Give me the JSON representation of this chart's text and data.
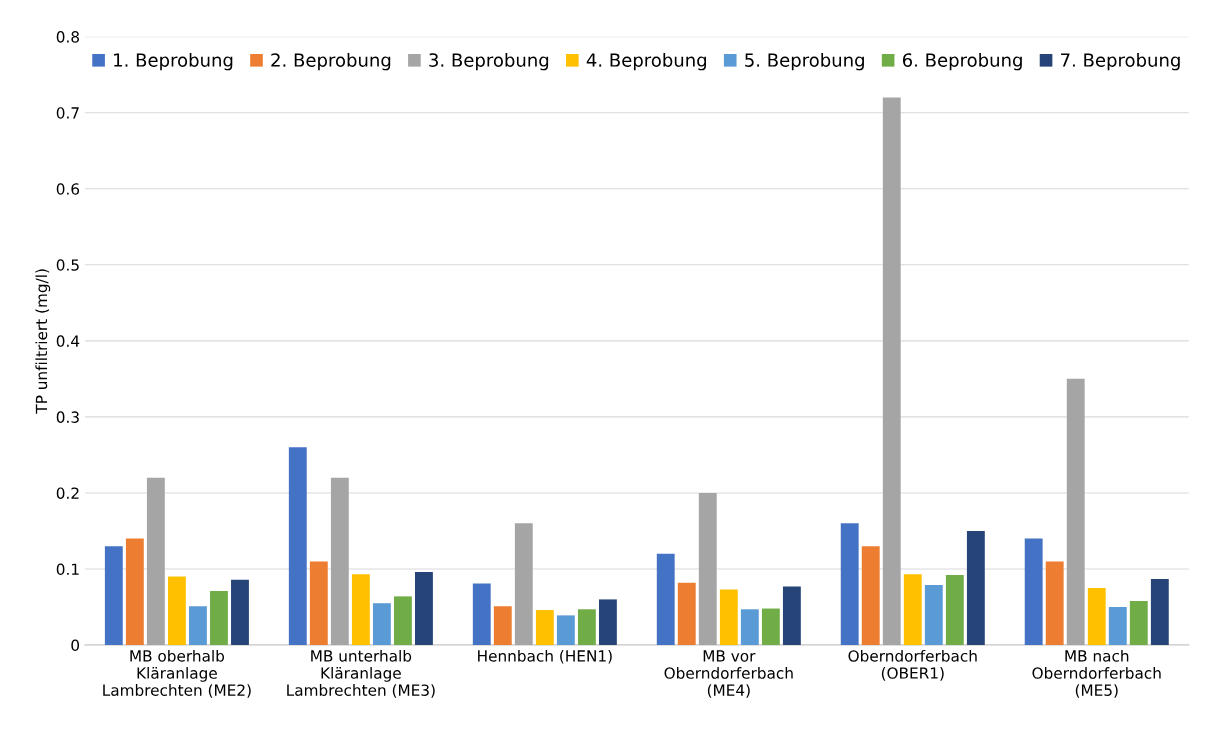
{
  "chart_data": {
    "type": "bar",
    "ylabel": "TP unfiltriert (mg/l)",
    "categories": [
      "MB oberhalb\nKläranlage\nLambrechten (ME2)",
      "MB unterhalb\nKläranlage\nLambrechten (ME3)",
      "Hennbach (HEN1)",
      "MB vor\nOberndorferbach\n(ME4)",
      "Oberndorferbach\n(OBER1)",
      "MB nach\nOberndorferbach\n(ME5)"
    ],
    "series": [
      {
        "name": "1. Beprobung",
        "color": "#4472c4",
        "values": [
          0.13,
          0.26,
          0.081,
          0.12,
          0.16,
          0.14
        ]
      },
      {
        "name": "2. Beprobung",
        "color": "#ed7d31",
        "values": [
          0.14,
          0.11,
          0.051,
          0.082,
          0.13,
          0.11
        ]
      },
      {
        "name": "3. Beprobung",
        "color": "#a5a5a5",
        "values": [
          0.22,
          0.22,
          0.16,
          0.2,
          0.72,
          0.35
        ]
      },
      {
        "name": "4. Beprobung",
        "color": "#ffc000",
        "values": [
          0.09,
          0.093,
          0.046,
          0.073,
          0.093,
          0.075
        ]
      },
      {
        "name": "5. Beprobung",
        "color": "#5b9bd5",
        "values": [
          0.051,
          0.055,
          0.039,
          0.047,
          0.079,
          0.05
        ]
      },
      {
        "name": "6. Beprobung",
        "color": "#70ad47",
        "values": [
          0.071,
          0.064,
          0.047,
          0.048,
          0.092,
          0.058
        ]
      },
      {
        "name": "7. Beprobung",
        "color": "#264478",
        "values": [
          0.086,
          0.096,
          0.06,
          0.077,
          0.15,
          0.087
        ]
      }
    ],
    "ylim": [
      0,
      0.8
    ],
    "yticks": [
      0,
      0.1,
      0.2,
      0.3,
      0.4,
      0.5,
      0.6,
      0.7,
      0.8
    ],
    "grid": "y",
    "legend": "top"
  }
}
